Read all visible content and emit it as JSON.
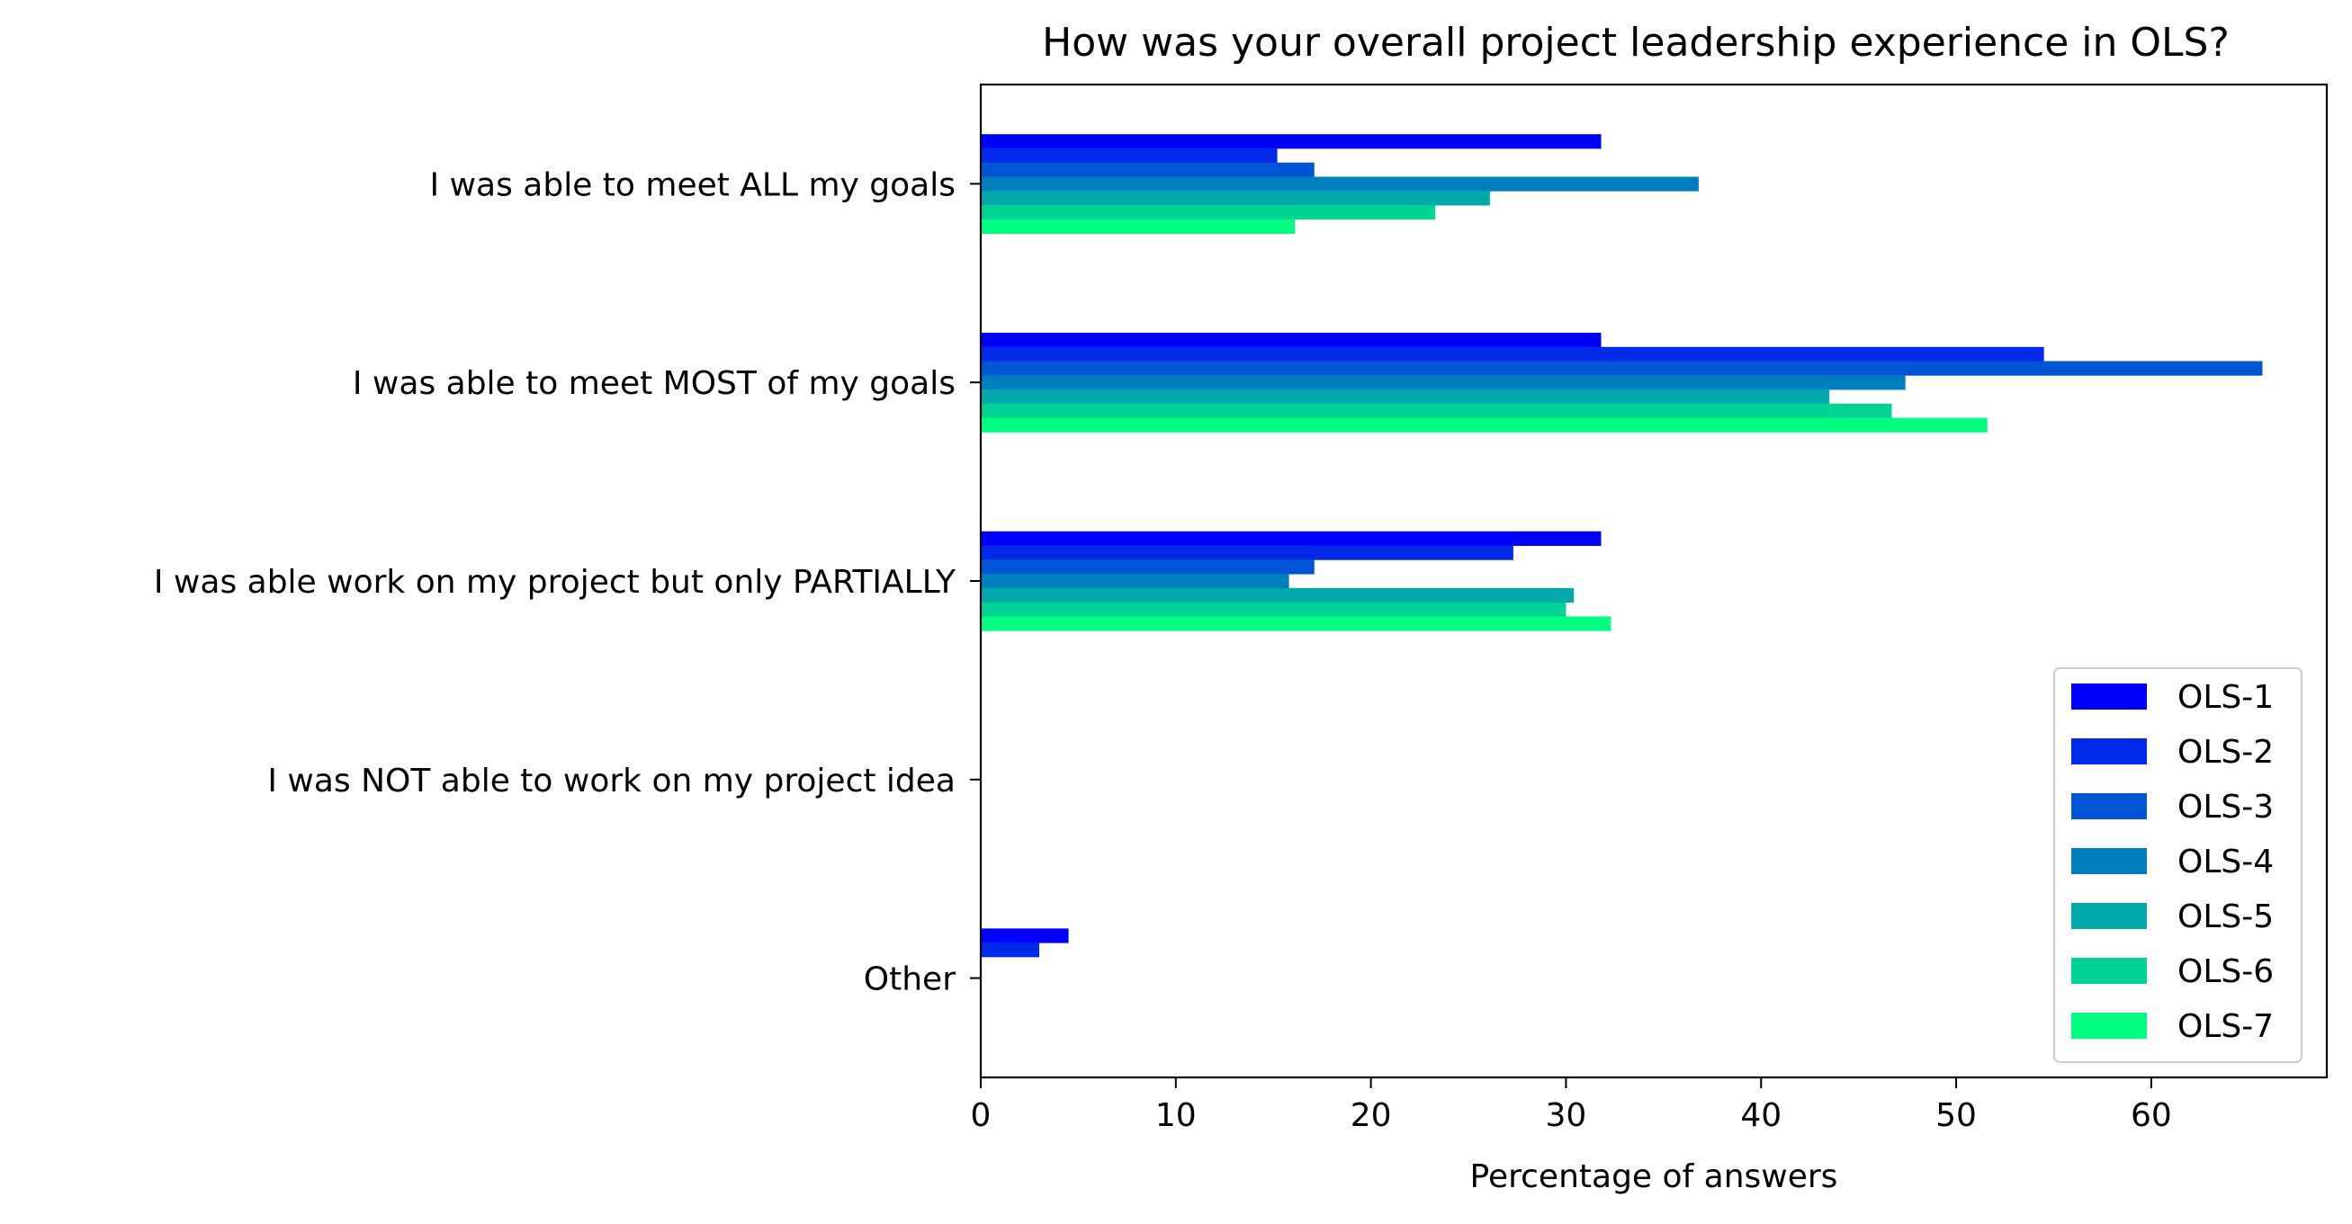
{
  "chart_data": {
    "type": "bar",
    "orientation": "horizontal",
    "title": "How was your overall project leadership experience in OLS?",
    "xlabel": "Percentage of answers",
    "ylabel": "",
    "xlim": [
      0,
      69
    ],
    "xticks": [
      0,
      10,
      20,
      30,
      40,
      50,
      60
    ],
    "grid": false,
    "legend_position": "lower-right",
    "categories": [
      "I was able to meet ALL my goals",
      "I was able to meet MOST of my goals",
      "I was able work on my project but only PARTIALLY",
      "I was NOT able to work on my project idea",
      "Other"
    ],
    "series": [
      {
        "name": "OLS-1",
        "color": "#0000ff",
        "values": [
          31.8,
          31.8,
          31.8,
          0,
          4.5
        ]
      },
      {
        "name": "OLS-2",
        "color": "#0029ea",
        "values": [
          15.2,
          54.5,
          27.3,
          0,
          3.0
        ]
      },
      {
        "name": "OLS-3",
        "color": "#0055d5",
        "values": [
          17.1,
          65.7,
          17.1,
          0,
          0
        ]
      },
      {
        "name": "OLS-4",
        "color": "#007fbf",
        "values": [
          36.8,
          47.4,
          15.8,
          0,
          0
        ]
      },
      {
        "name": "OLS-5",
        "color": "#00aaaa",
        "values": [
          26.1,
          43.5,
          30.4,
          0,
          0
        ]
      },
      {
        "name": "OLS-6",
        "color": "#00d494",
        "values": [
          23.3,
          46.7,
          30.0,
          0,
          0
        ]
      },
      {
        "name": "OLS-7",
        "color": "#00ff80",
        "values": [
          16.1,
          51.6,
          32.3,
          0,
          0
        ]
      }
    ]
  }
}
